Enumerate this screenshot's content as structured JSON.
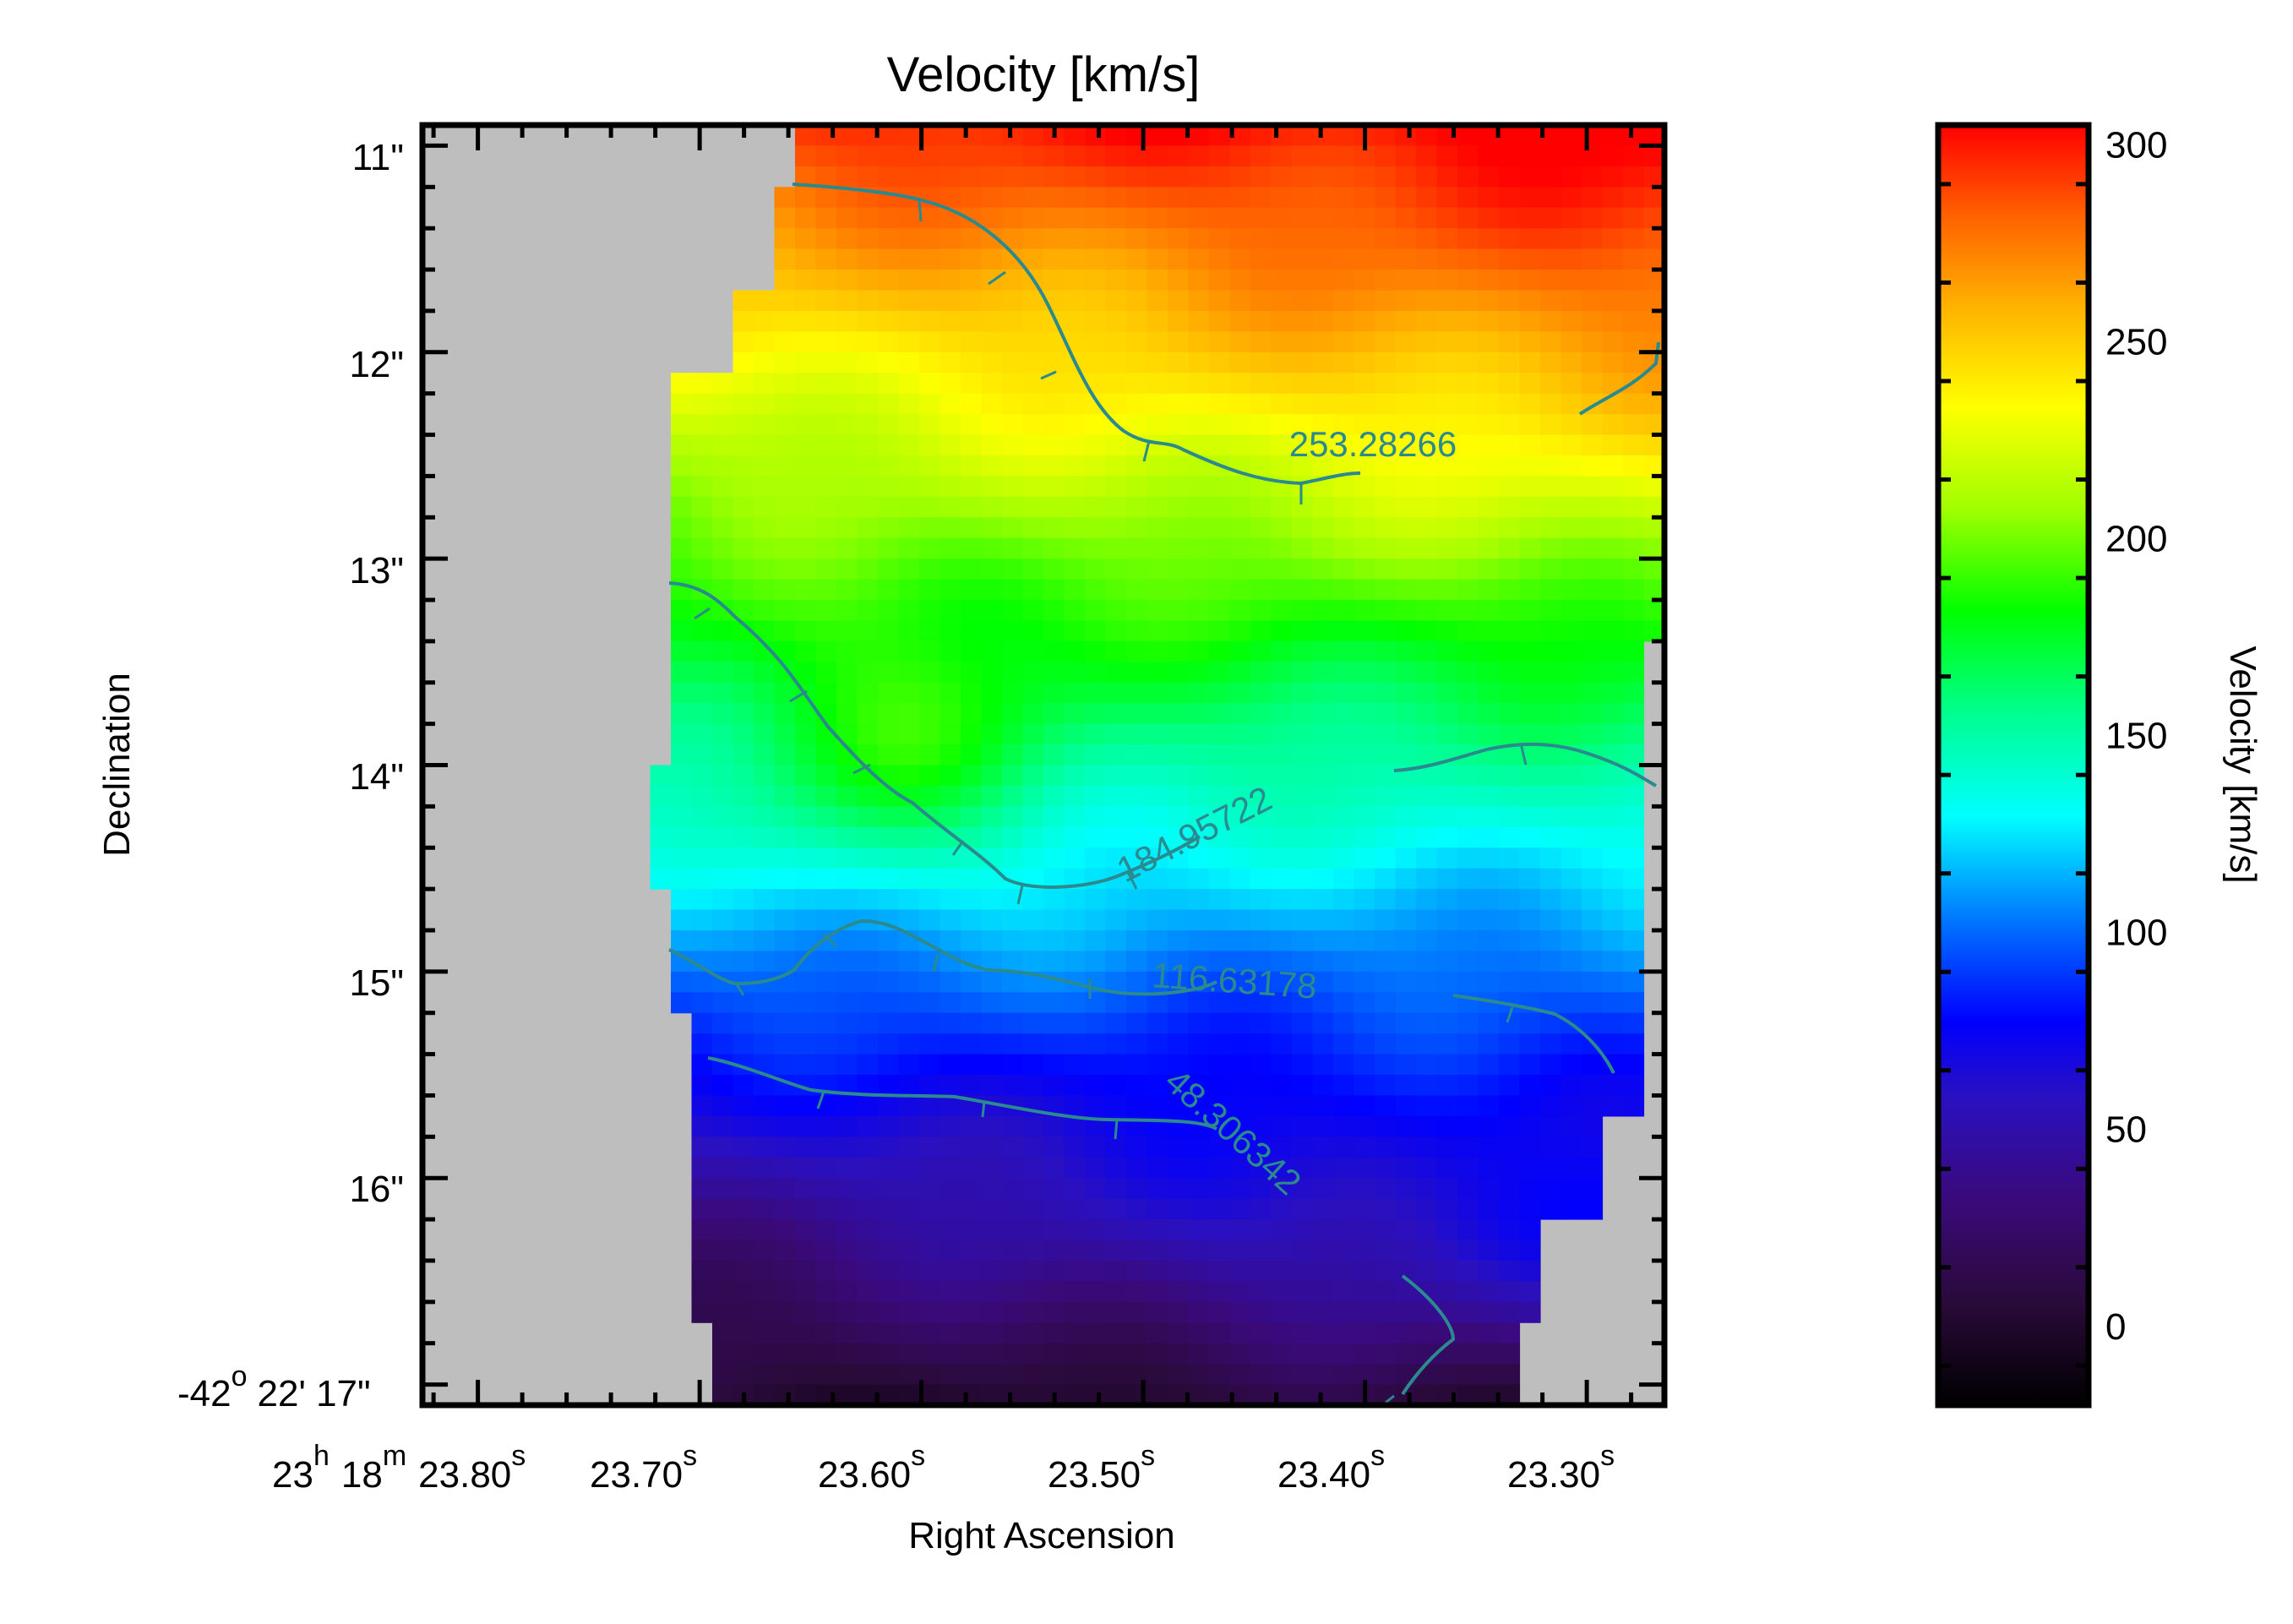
{
  "chart_data": {
    "type": "heatmap",
    "title": "Velocity [km/s]",
    "xlabel": "Right Ascension",
    "ylabel": "Declination",
    "x_ticks": [
      {
        "h": "23",
        "m": "18",
        "s": "23.80"
      },
      {
        "s": "23.70"
      },
      {
        "s": "23.60"
      },
      {
        "s": "23.50"
      },
      {
        "s": "23.40"
      },
      {
        "s": "23.30"
      }
    ],
    "x_tick_units": {
      "h": "h",
      "m": "m",
      "s": "s"
    },
    "y_ticks": [
      {
        "value": 11,
        "label": "11\""
      },
      {
        "value": 12,
        "label": "12\""
      },
      {
        "value": 13,
        "label": "13\""
      },
      {
        "value": 14,
        "label": "14\""
      },
      {
        "value": 15,
        "label": "15\""
      },
      {
        "value": 16,
        "label": "16\""
      },
      {
        "value": 17,
        "label": "-42   22' 17\"",
        "deg": "-42",
        "deg_sym": "o",
        "rest": "22' 17\""
      }
    ],
    "xlim_seconds": [
      23.825,
      23.265
    ],
    "ylim_arcsec": [
      17.1,
      10.9
    ],
    "colorbar": {
      "label": "Velocity [km/s]",
      "ticks": [
        0,
        50,
        100,
        150,
        200,
        250,
        300
      ],
      "range": [
        -20,
        305
      ],
      "colormap": "rainbow"
    },
    "contours": [
      {
        "level": 253.28266,
        "label": "253.28266"
      },
      {
        "level": 184.95722,
        "label": "184.95722"
      },
      {
        "level": 116.63178,
        "label": "116.63178"
      },
      {
        "level": 48.306342,
        "label": "48.306342"
      }
    ],
    "map_summary": "Velocity increases from about 0 km/s at the bottom (south) to about 300 km/s at the top-right; masked (grey) region covers the left side of the field.",
    "masked_color": "#bebebe",
    "contour_color": "#2a8a8e"
  }
}
